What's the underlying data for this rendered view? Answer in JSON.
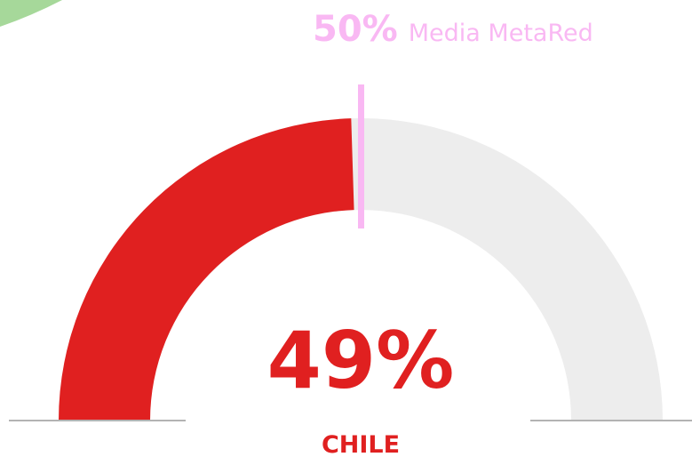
{
  "colors": {
    "accent": "#e02020",
    "track": "#ededed",
    "benchmark": "#f9b8f3",
    "baseline": "#b3b3b3",
    "corner": "#a6d89a"
  },
  "chart_data": {
    "type": "gauge",
    "value": 49,
    "value_label": "49%",
    "range": [
      0,
      100
    ],
    "category": "CHILE",
    "benchmark": {
      "value": 50,
      "value_label": "50%",
      "label": "Media MetaRed"
    }
  }
}
